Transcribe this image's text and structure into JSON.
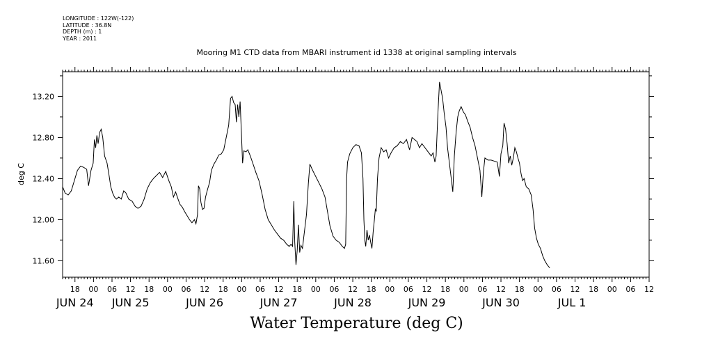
{
  "meta": {
    "longitude": "LONGITUDE : 122W(-122)",
    "latitude": "LATITUDE : 36.8N",
    "depth": "DEPTH (m) : 1",
    "year": "YEAR : 2011"
  },
  "chart_data": {
    "type": "line",
    "title": "Mooring M1 CTD data from MBARI instrument id 1338 at original sampling intervals",
    "xlabel": "Water Temperature (deg C)",
    "ylabel": "deg C",
    "xlim_hours": [
      -10,
      180
    ],
    "ylim": [
      11.44,
      13.44
    ],
    "yticks": [
      11.6,
      12.0,
      12.4,
      12.8,
      13.2
    ],
    "ytick_labels": [
      "11.60",
      "12.00",
      "12.40",
      "12.80",
      "13.20"
    ],
    "hour_ticks": [
      {
        "h": -6,
        "label": "18"
      },
      {
        "h": 0,
        "label": "00"
      },
      {
        "h": 6,
        "label": "06"
      },
      {
        "h": 12,
        "label": "12"
      },
      {
        "h": 18,
        "label": "18"
      },
      {
        "h": 24,
        "label": "00"
      },
      {
        "h": 30,
        "label": "06"
      },
      {
        "h": 36,
        "label": "12"
      },
      {
        "h": 42,
        "label": "18"
      },
      {
        "h": 48,
        "label": "00"
      },
      {
        "h": 54,
        "label": "06"
      },
      {
        "h": 60,
        "label": "12"
      },
      {
        "h": 66,
        "label": "18"
      },
      {
        "h": 72,
        "label": "00"
      },
      {
        "h": 78,
        "label": "06"
      },
      {
        "h": 84,
        "label": "12"
      },
      {
        "h": 90,
        "label": "18"
      },
      {
        "h": 96,
        "label": "00"
      },
      {
        "h": 102,
        "label": "06"
      },
      {
        "h": 108,
        "label": "12"
      },
      {
        "h": 114,
        "label": "18"
      },
      {
        "h": 120,
        "label": "00"
      },
      {
        "h": 126,
        "label": "06"
      },
      {
        "h": 132,
        "label": "12"
      },
      {
        "h": 138,
        "label": "18"
      },
      {
        "h": 144,
        "label": "00"
      },
      {
        "h": 150,
        "label": "06"
      },
      {
        "h": 156,
        "label": "12"
      },
      {
        "h": 162,
        "label": "18"
      },
      {
        "h": 168,
        "label": "00"
      },
      {
        "h": 174,
        "label": "06"
      },
      {
        "h": 180,
        "label": "12"
      }
    ],
    "day_labels": [
      {
        "h": -6,
        "label": "JUN 24"
      },
      {
        "h": 12,
        "label": "JUN 25"
      },
      {
        "h": 36,
        "label": "JUN 26"
      },
      {
        "h": 60,
        "label": "JUN 27"
      },
      {
        "h": 84,
        "label": "JUN 28"
      },
      {
        "h": 108,
        "label": "JUN 29"
      },
      {
        "h": 132,
        "label": "JUN 30"
      },
      {
        "h": 155,
        "label": "JUL  1"
      }
    ],
    "series": [
      {
        "points": [
          [
            -10.0,
            12.32
          ],
          [
            -9.2,
            12.26
          ],
          [
            -8.2,
            12.24
          ],
          [
            -7.2,
            12.28
          ],
          [
            -6.2,
            12.38
          ],
          [
            -5.2,
            12.48
          ],
          [
            -4.2,
            12.52
          ],
          [
            -3.2,
            12.51
          ],
          [
            -2.2,
            12.49
          ],
          [
            -1.6,
            12.33
          ],
          [
            -0.8,
            12.48
          ],
          [
            -0.1,
            12.55
          ],
          [
            0.3,
            12.78
          ],
          [
            0.7,
            12.7
          ],
          [
            1.1,
            12.82
          ],
          [
            1.5,
            12.74
          ],
          [
            2.0,
            12.85
          ],
          [
            2.5,
            12.88
          ],
          [
            3.0,
            12.8
          ],
          [
            3.6,
            12.62
          ],
          [
            4.4,
            12.55
          ],
          [
            5.0,
            12.44
          ],
          [
            5.6,
            12.32
          ],
          [
            6.2,
            12.26
          ],
          [
            6.8,
            12.22
          ],
          [
            7.4,
            12.2
          ],
          [
            8.2,
            12.22
          ],
          [
            9.0,
            12.2
          ],
          [
            9.8,
            12.28
          ],
          [
            10.5,
            12.26
          ],
          [
            11.4,
            12.2
          ],
          [
            12.5,
            12.18
          ],
          [
            13.5,
            12.13
          ],
          [
            14.4,
            12.11
          ],
          [
            15.4,
            12.13
          ],
          [
            16.4,
            12.2
          ],
          [
            17.4,
            12.3
          ],
          [
            18.4,
            12.36
          ],
          [
            19.4,
            12.4
          ],
          [
            20.4,
            12.43
          ],
          [
            21.4,
            12.46
          ],
          [
            22.4,
            12.41
          ],
          [
            23.4,
            12.47
          ],
          [
            24.4,
            12.38
          ],
          [
            25.2,
            12.32
          ],
          [
            25.9,
            12.22
          ],
          [
            26.6,
            12.27
          ],
          [
            27.4,
            12.2
          ],
          [
            28.0,
            12.15
          ],
          [
            28.8,
            12.12
          ],
          [
            29.5,
            12.08
          ],
          [
            30.3,
            12.04
          ],
          [
            31.1,
            12.0
          ],
          [
            31.9,
            11.97
          ],
          [
            32.7,
            12.0
          ],
          [
            33.2,
            11.96
          ],
          [
            33.7,
            12.05
          ],
          [
            34.0,
            12.33
          ],
          [
            34.4,
            12.3
          ],
          [
            34.8,
            12.17
          ],
          [
            35.3,
            12.1
          ],
          [
            35.8,
            12.11
          ],
          [
            36.3,
            12.22
          ],
          [
            37.0,
            12.3
          ],
          [
            37.6,
            12.36
          ],
          [
            38.2,
            12.48
          ],
          [
            39.0,
            12.54
          ],
          [
            39.8,
            12.58
          ],
          [
            40.6,
            12.63
          ],
          [
            41.4,
            12.64
          ],
          [
            42.2,
            12.68
          ],
          [
            43.0,
            12.8
          ],
          [
            43.8,
            12.92
          ],
          [
            44.4,
            13.18
          ],
          [
            44.9,
            13.2
          ],
          [
            45.4,
            13.14
          ],
          [
            45.9,
            13.12
          ],
          [
            46.3,
            12.95
          ],
          [
            46.7,
            13.12
          ],
          [
            47.1,
            13.0
          ],
          [
            47.5,
            13.15
          ],
          [
            47.9,
            12.86
          ],
          [
            48.3,
            12.55
          ],
          [
            48.7,
            12.67
          ],
          [
            49.4,
            12.66
          ],
          [
            50.0,
            12.68
          ],
          [
            50.8,
            12.62
          ],
          [
            51.6,
            12.55
          ],
          [
            52.6,
            12.46
          ],
          [
            53.6,
            12.38
          ],
          [
            54.6,
            12.25
          ],
          [
            55.6,
            12.1
          ],
          [
            56.6,
            12.0
          ],
          [
            57.6,
            11.95
          ],
          [
            58.6,
            11.9
          ],
          [
            59.6,
            11.86
          ],
          [
            60.6,
            11.82
          ],
          [
            61.6,
            11.8
          ],
          [
            62.6,
            11.76
          ],
          [
            63.4,
            11.74
          ],
          [
            64.0,
            11.76
          ],
          [
            64.5,
            11.74
          ],
          [
            64.9,
            12.18
          ],
          [
            65.2,
            11.78
          ],
          [
            65.6,
            11.56
          ],
          [
            66.0,
            11.7
          ],
          [
            66.4,
            11.95
          ],
          [
            66.8,
            11.68
          ],
          [
            67.2,
            11.75
          ],
          [
            67.7,
            11.72
          ],
          [
            68.2,
            11.85
          ],
          [
            69.0,
            12.05
          ],
          [
            69.6,
            12.35
          ],
          [
            70.1,
            12.54
          ],
          [
            71.0,
            12.48
          ],
          [
            72.0,
            12.42
          ],
          [
            73.0,
            12.36
          ],
          [
            74.0,
            12.3
          ],
          [
            75.0,
            12.22
          ],
          [
            75.8,
            12.08
          ],
          [
            76.6,
            11.94
          ],
          [
            77.6,
            11.84
          ],
          [
            78.6,
            11.8
          ],
          [
            79.6,
            11.78
          ],
          [
            80.6,
            11.74
          ],
          [
            81.3,
            11.72
          ],
          [
            81.7,
            11.76
          ],
          [
            82.0,
            12.4
          ],
          [
            82.3,
            12.56
          ],
          [
            83.0,
            12.64
          ],
          [
            84.0,
            12.7
          ],
          [
            85.0,
            12.73
          ],
          [
            86.0,
            12.72
          ],
          [
            86.8,
            12.65
          ],
          [
            87.3,
            12.4
          ],
          [
            87.6,
            12.0
          ],
          [
            87.9,
            11.8
          ],
          [
            88.2,
            11.74
          ],
          [
            88.6,
            11.9
          ],
          [
            89.0,
            11.8
          ],
          [
            89.4,
            11.85
          ],
          [
            89.8,
            11.78
          ],
          [
            90.2,
            11.72
          ],
          [
            90.6,
            11.88
          ],
          [
            91.0,
            12.0
          ],
          [
            91.3,
            12.1
          ],
          [
            91.6,
            12.08
          ],
          [
            92.0,
            12.4
          ],
          [
            92.5,
            12.6
          ],
          [
            93.2,
            12.7
          ],
          [
            94.0,
            12.66
          ],
          [
            94.8,
            12.68
          ],
          [
            95.6,
            12.6
          ],
          [
            96.4,
            12.65
          ],
          [
            97.4,
            12.7
          ],
          [
            98.4,
            12.72
          ],
          [
            99.4,
            12.76
          ],
          [
            100.4,
            12.74
          ],
          [
            101.4,
            12.78
          ],
          [
            102.4,
            12.68
          ],
          [
            103.2,
            12.8
          ],
          [
            104.0,
            12.78
          ],
          [
            104.8,
            12.76
          ],
          [
            105.6,
            12.7
          ],
          [
            106.4,
            12.74
          ],
          [
            107.4,
            12.7
          ],
          [
            108.4,
            12.66
          ],
          [
            109.4,
            12.62
          ],
          [
            110.0,
            12.65
          ],
          [
            110.6,
            12.56
          ],
          [
            111.0,
            12.62
          ],
          [
            111.6,
            13.05
          ],
          [
            112.1,
            13.34
          ],
          [
            112.6,
            13.26
          ],
          [
            113.1,
            13.18
          ],
          [
            113.6,
            13.04
          ],
          [
            114.2,
            12.9
          ],
          [
            114.7,
            12.7
          ],
          [
            115.3,
            12.55
          ],
          [
            115.9,
            12.4
          ],
          [
            116.4,
            12.27
          ],
          [
            116.9,
            12.62
          ],
          [
            117.5,
            12.86
          ],
          [
            118.0,
            13.0
          ],
          [
            118.5,
            13.06
          ],
          [
            119.1,
            13.1
          ],
          [
            119.8,
            13.05
          ],
          [
            120.5,
            13.02
          ],
          [
            121.2,
            12.96
          ],
          [
            122.0,
            12.9
          ],
          [
            122.8,
            12.8
          ],
          [
            123.6,
            12.72
          ],
          [
            124.4,
            12.6
          ],
          [
            125.2,
            12.48
          ],
          [
            125.8,
            12.22
          ],
          [
            126.3,
            12.46
          ],
          [
            126.8,
            12.6
          ],
          [
            127.8,
            12.58
          ],
          [
            128.8,
            12.58
          ],
          [
            129.8,
            12.57
          ],
          [
            130.8,
            12.56
          ],
          [
            131.5,
            12.42
          ],
          [
            132.0,
            12.64
          ],
          [
            132.6,
            12.72
          ],
          [
            133.0,
            12.94
          ],
          [
            133.5,
            12.88
          ],
          [
            134.0,
            12.74
          ],
          [
            134.5,
            12.55
          ],
          [
            135.0,
            12.62
          ],
          [
            135.5,
            12.53
          ],
          [
            136.0,
            12.6
          ],
          [
            136.5,
            12.7
          ],
          [
            137.0,
            12.66
          ],
          [
            137.5,
            12.6
          ],
          [
            138.0,
            12.55
          ],
          [
            138.5,
            12.45
          ],
          [
            139.0,
            12.38
          ],
          [
            139.5,
            12.4
          ],
          [
            140.2,
            12.32
          ],
          [
            141.0,
            12.3
          ],
          [
            141.8,
            12.24
          ],
          [
            142.4,
            12.1
          ],
          [
            142.9,
            11.92
          ],
          [
            143.5,
            11.82
          ],
          [
            144.1,
            11.76
          ],
          [
            144.8,
            11.72
          ],
          [
            145.5,
            11.65
          ],
          [
            146.2,
            11.6
          ],
          [
            147.0,
            11.56
          ],
          [
            147.8,
            11.53
          ]
        ]
      }
    ]
  }
}
